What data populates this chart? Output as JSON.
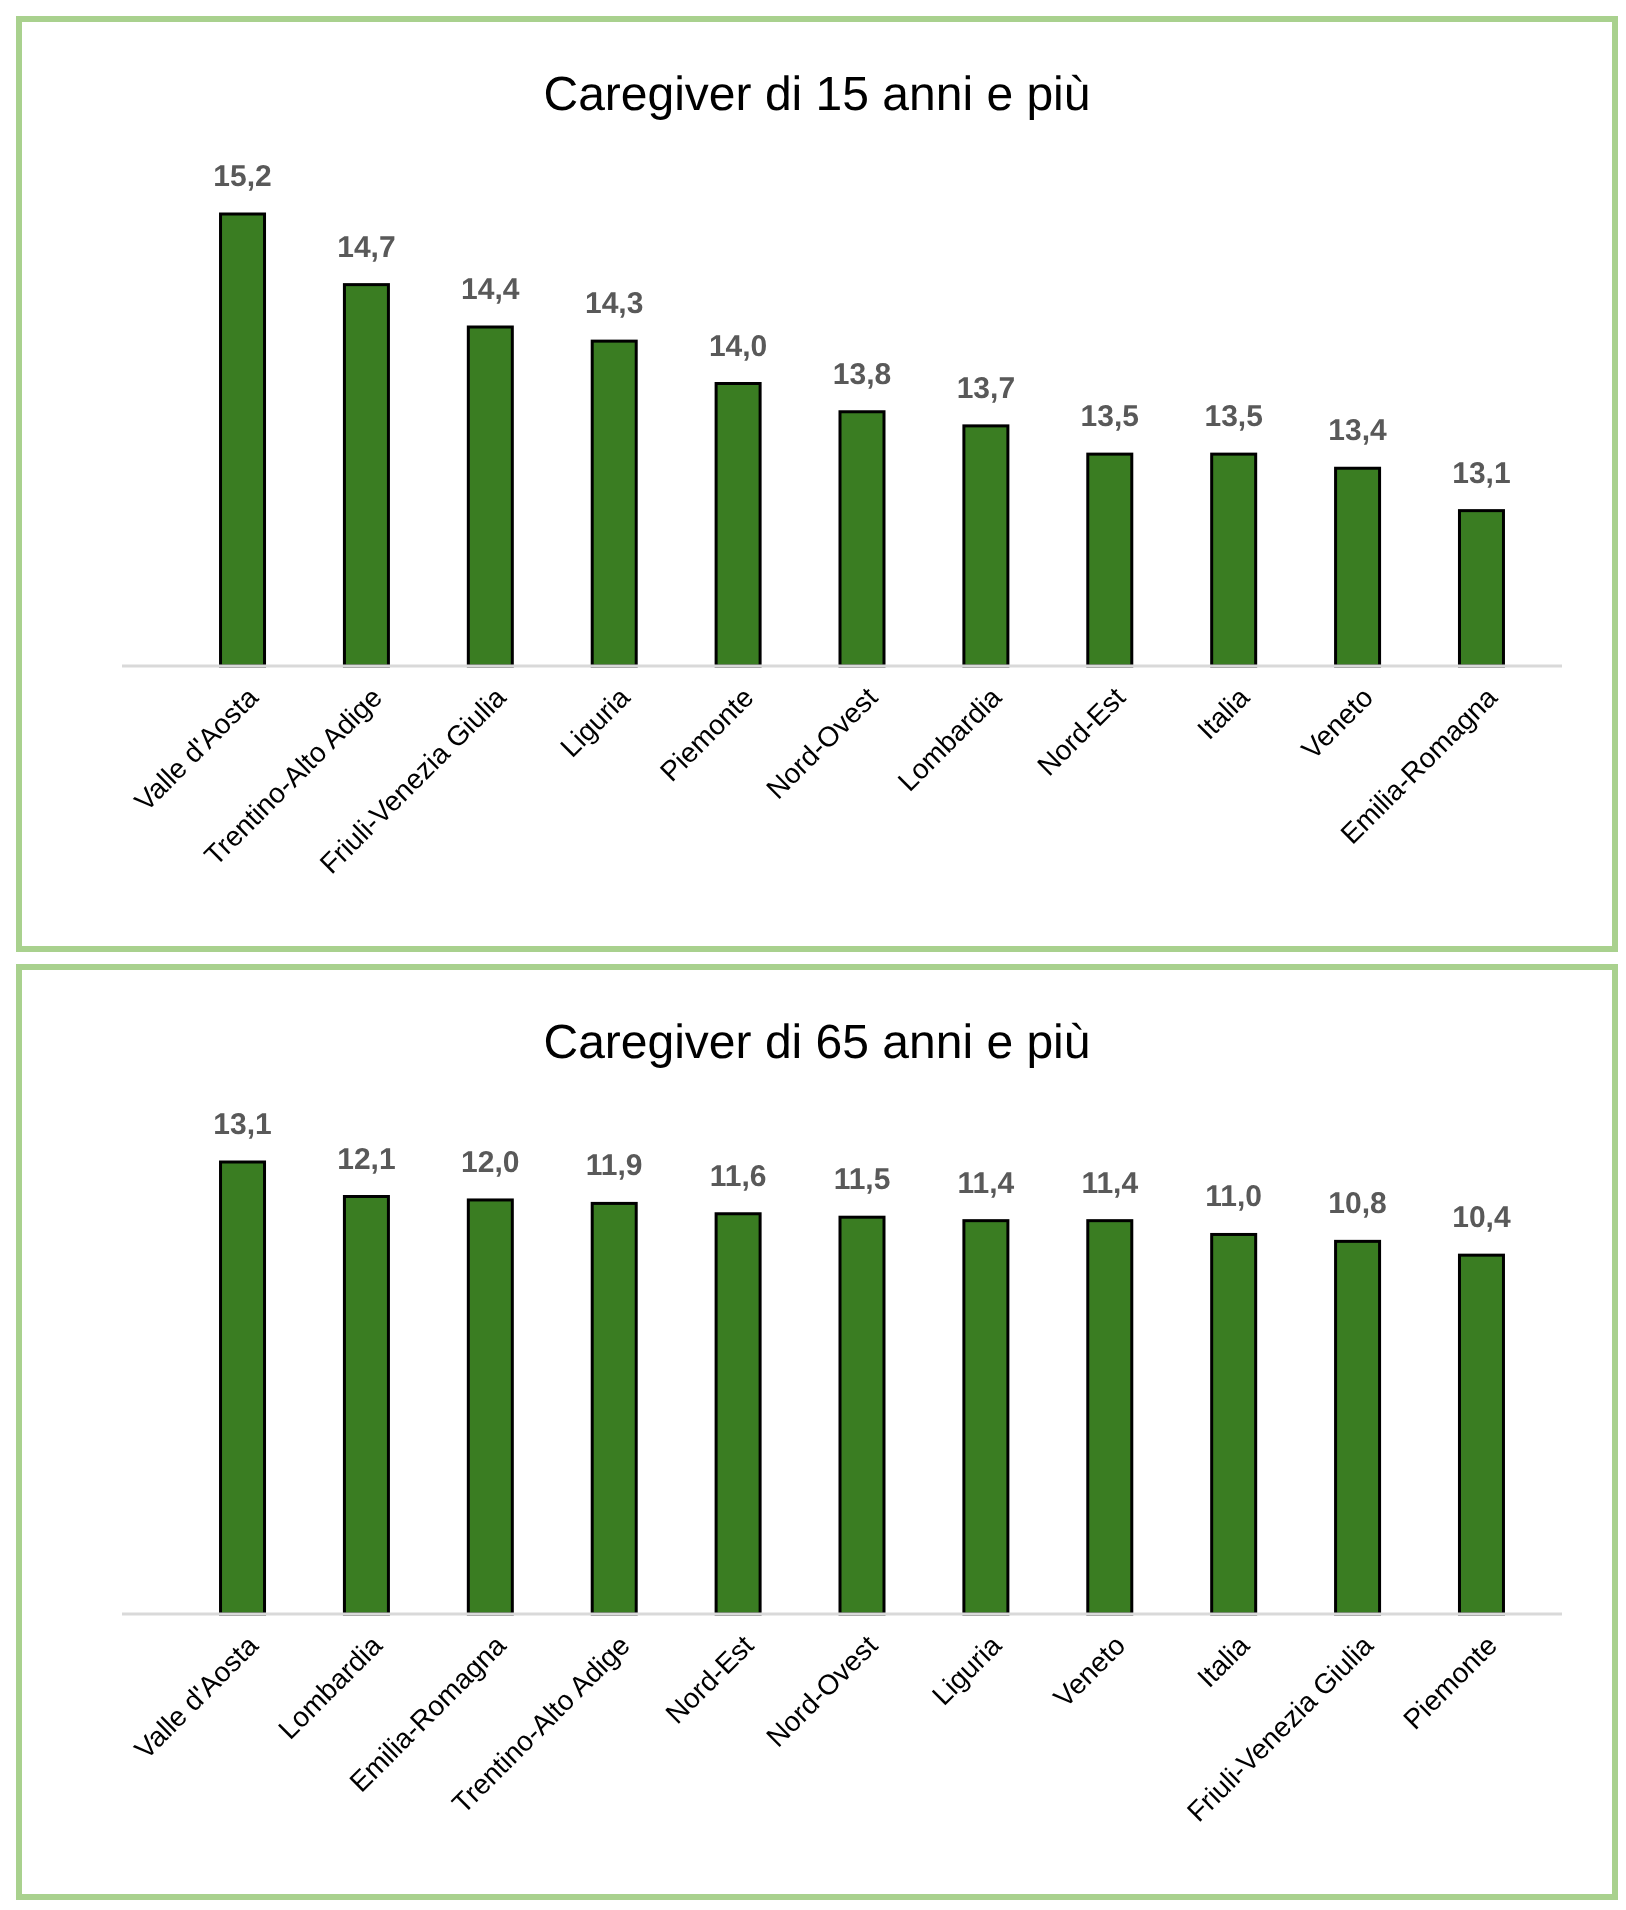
{
  "chart_data": [
    {
      "type": "bar",
      "title": "Caregiver di 15 anni e più",
      "categories": [
        "Valle d'Aosta",
        "Trentino-Alto Adige",
        "Friuli-Venezia Giulia",
        "Liguria",
        "Piemonte",
        "Nord-Ovest",
        "Lombardia",
        "Nord-Est",
        "Italia",
        "Veneto",
        "Emilia-Romagna"
      ],
      "values": [
        15.2,
        14.7,
        14.4,
        14.3,
        14.0,
        13.8,
        13.7,
        13.5,
        13.5,
        13.4,
        13.1
      ],
      "value_labels": [
        "15,2",
        "14,7",
        "14,4",
        "14,3",
        "14,0",
        "13,8",
        "13,7",
        "13,5",
        "13,5",
        "13,4",
        "13,1"
      ],
      "color": "#3a7d22",
      "ylim": [
        12,
        15.2
      ],
      "tick_labels": "x"
    },
    {
      "type": "bar",
      "title": "Caregiver di 65 anni e più",
      "categories": [
        "Valle d'Aosta",
        "Lombardia",
        "Emilia-Romagna",
        "Trentino-Alto Adige",
        "Nord-Est",
        "Nord-Ovest",
        "Liguria",
        "Veneto",
        "Italia",
        "Friuli-Venezia Giulia",
        "Piemonte"
      ],
      "values": [
        13.1,
        12.1,
        12.0,
        11.9,
        11.6,
        11.5,
        11.4,
        11.4,
        11.0,
        10.8,
        10.4
      ],
      "value_labels": [
        "13,1",
        "12,1",
        "12,0",
        "11,9",
        "11,6",
        "11,5",
        "11,4",
        "11,4",
        "11,0",
        "10,8",
        "10,4"
      ],
      "color": "#3a7d22",
      "ylim": [
        0,
        13.1
      ],
      "tick_labels": "x"
    }
  ]
}
